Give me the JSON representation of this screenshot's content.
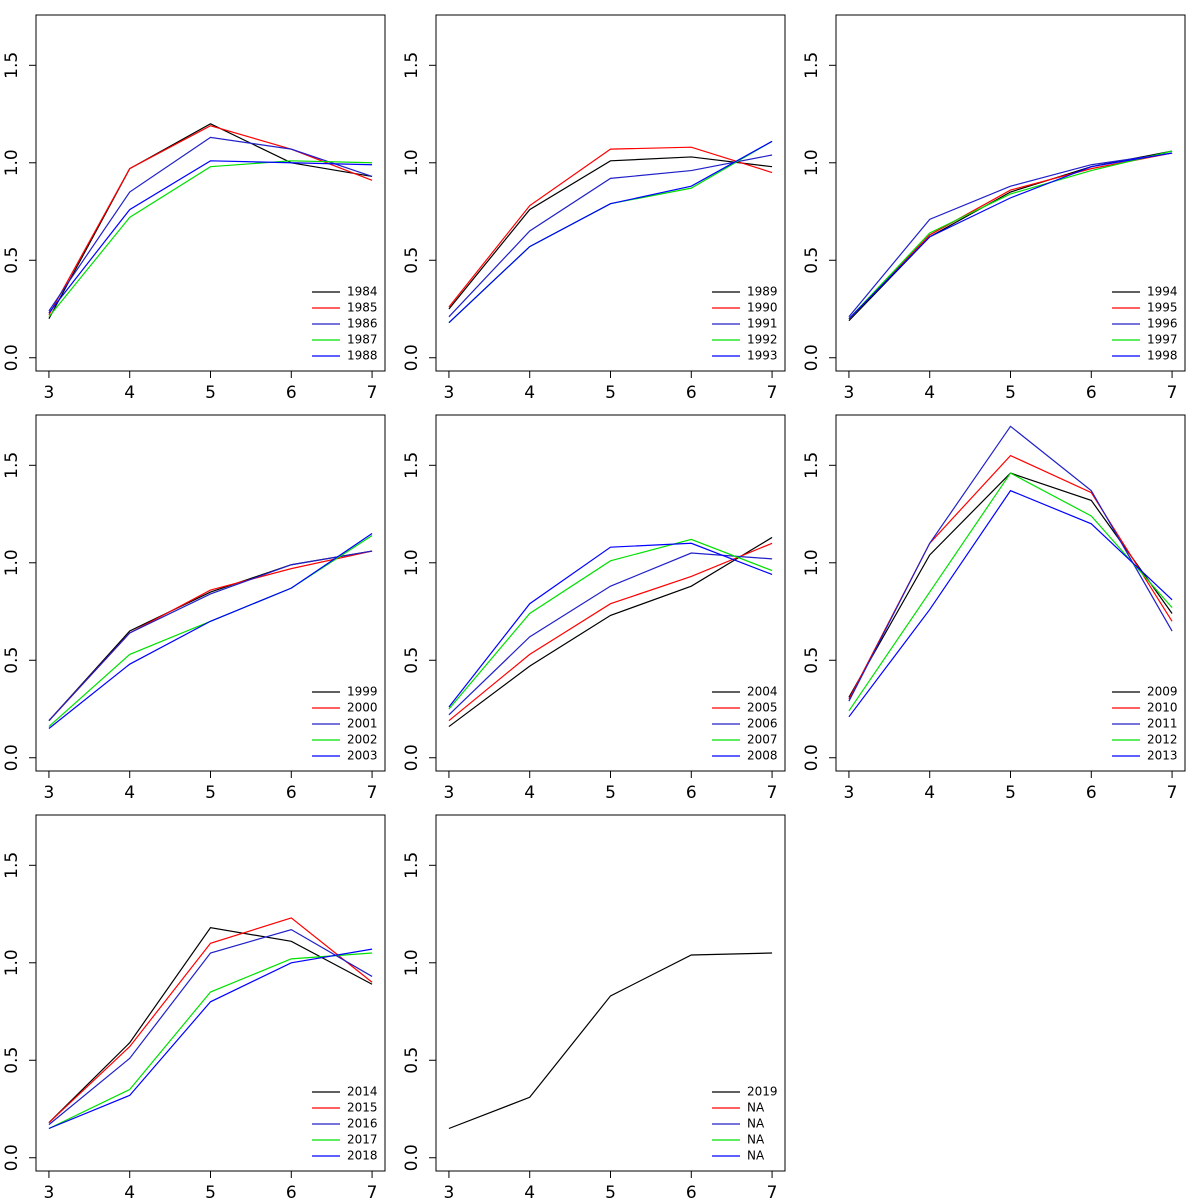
{
  "chart_data": [
    {
      "type": "line",
      "x": [
        3,
        4,
        5,
        6,
        7
      ],
      "xlim": [
        2.84,
        7.16
      ],
      "xticks": [
        3,
        4,
        5,
        6,
        7
      ],
      "ylim": [
        -0.068,
        1.758
      ],
      "yticks": [
        {
          "value": 0,
          "label": "0.0"
        },
        {
          "value": 0.5,
          "label": "0.5"
        },
        {
          "value": 1,
          "label": "1.0"
        },
        {
          "value": 1.5,
          "label": "1.5"
        }
      ],
      "legend": "bottomright",
      "series": [
        {
          "name": "1984",
          "color": "#000000",
          "values": [
            0.2,
            0.97,
            1.2,
            1.0,
            0.93
          ]
        },
        {
          "name": "1985",
          "color": "#ff0000",
          "values": [
            0.22,
            0.97,
            1.19,
            1.07,
            0.91
          ]
        },
        {
          "name": "1986",
          "color": "#2020c8",
          "values": [
            0.24,
            0.85,
            1.13,
            1.07,
            0.93
          ]
        },
        {
          "name": "1987",
          "color": "#00e000",
          "values": [
            0.21,
            0.72,
            0.98,
            1.01,
            1.0
          ]
        },
        {
          "name": "1988",
          "color": "#0000ff",
          "values": [
            0.23,
            0.76,
            1.01,
            1.0,
            0.99
          ]
        }
      ]
    },
    {
      "type": "line",
      "x": [
        3,
        4,
        5,
        6,
        7
      ],
      "xlim": [
        2.84,
        7.16
      ],
      "xticks": [
        3,
        4,
        5,
        6,
        7
      ],
      "ylim": [
        -0.068,
        1.758
      ],
      "yticks": [
        {
          "value": 0,
          "label": "0.0"
        },
        {
          "value": 0.5,
          "label": "0.5"
        },
        {
          "value": 1,
          "label": "1.0"
        },
        {
          "value": 1.5,
          "label": "1.5"
        }
      ],
      "legend": "bottomright",
      "series": [
        {
          "name": "1989",
          "color": "#000000",
          "values": [
            0.25,
            0.76,
            1.01,
            1.03,
            0.98
          ]
        },
        {
          "name": "1990",
          "color": "#ff0000",
          "values": [
            0.26,
            0.78,
            1.07,
            1.08,
            0.95
          ]
        },
        {
          "name": "1991",
          "color": "#2020c8",
          "values": [
            0.21,
            0.65,
            0.92,
            0.96,
            1.04
          ]
        },
        {
          "name": "1992",
          "color": "#00e000",
          "values": [
            0.18,
            0.57,
            0.79,
            0.87,
            1.11
          ]
        },
        {
          "name": "1993",
          "color": "#0000ff",
          "values": [
            0.18,
            0.57,
            0.79,
            0.88,
            1.11
          ]
        }
      ]
    },
    {
      "type": "line",
      "x": [
        3,
        4,
        5,
        6,
        7
      ],
      "xlim": [
        2.84,
        7.16
      ],
      "xticks": [
        3,
        4,
        5,
        6,
        7
      ],
      "ylim": [
        -0.068,
        1.758
      ],
      "yticks": [
        {
          "value": 0,
          "label": "0.0"
        },
        {
          "value": 0.5,
          "label": "0.5"
        },
        {
          "value": 1,
          "label": "1.0"
        },
        {
          "value": 1.5,
          "label": "1.5"
        }
      ],
      "legend": "bottomright",
      "series": [
        {
          "name": "1994",
          "color": "#000000",
          "values": [
            0.19,
            0.62,
            0.85,
            0.98,
            1.06
          ]
        },
        {
          "name": "1995",
          "color": "#ff0000",
          "values": [
            0.2,
            0.63,
            0.86,
            0.97,
            1.05
          ]
        },
        {
          "name": "1996",
          "color": "#2020c8",
          "values": [
            0.21,
            0.71,
            0.88,
            0.99,
            1.05
          ]
        },
        {
          "name": "1997",
          "color": "#00e000",
          "values": [
            0.2,
            0.64,
            0.84,
            0.96,
            1.06
          ]
        },
        {
          "name": "1998",
          "color": "#0000ff",
          "values": [
            0.2,
            0.62,
            0.82,
            0.98,
            1.05
          ]
        }
      ]
    },
    {
      "type": "line",
      "x": [
        3,
        4,
        5,
        6,
        7
      ],
      "xlim": [
        2.84,
        7.16
      ],
      "xticks": [
        3,
        4,
        5,
        6,
        7
      ],
      "ylim": [
        -0.068,
        1.758
      ],
      "yticks": [
        {
          "value": 0,
          "label": "0.0"
        },
        {
          "value": 0.5,
          "label": "0.5"
        },
        {
          "value": 1,
          "label": "1.0"
        },
        {
          "value": 1.5,
          "label": "1.5"
        }
      ],
      "legend": "bottomright",
      "series": [
        {
          "name": "1999",
          "color": "#000000",
          "values": [
            0.19,
            0.65,
            0.85,
            0.99,
            1.06
          ]
        },
        {
          "name": "2000",
          "color": "#ff0000",
          "values": [
            0.19,
            0.64,
            0.86,
            0.97,
            1.06
          ]
        },
        {
          "name": "2001",
          "color": "#2020c8",
          "values": [
            0.19,
            0.64,
            0.84,
            0.99,
            1.06
          ]
        },
        {
          "name": "2002",
          "color": "#00e000",
          "values": [
            0.16,
            0.53,
            0.7,
            0.87,
            1.14
          ]
        },
        {
          "name": "2003",
          "color": "#0000ff",
          "values": [
            0.15,
            0.48,
            0.7,
            0.87,
            1.15
          ]
        }
      ]
    },
    {
      "type": "line",
      "x": [
        3,
        4,
        5,
        6,
        7
      ],
      "xlim": [
        2.84,
        7.16
      ],
      "xticks": [
        3,
        4,
        5,
        6,
        7
      ],
      "ylim": [
        -0.068,
        1.758
      ],
      "yticks": [
        {
          "value": 0,
          "label": "0.0"
        },
        {
          "value": 0.5,
          "label": "0.5"
        },
        {
          "value": 1,
          "label": "1.0"
        },
        {
          "value": 1.5,
          "label": "1.5"
        }
      ],
      "legend": "bottomright",
      "series": [
        {
          "name": "2004",
          "color": "#000000",
          "values": [
            0.16,
            0.47,
            0.73,
            0.88,
            1.13
          ]
        },
        {
          "name": "2005",
          "color": "#ff0000",
          "values": [
            0.19,
            0.53,
            0.79,
            0.93,
            1.1
          ]
        },
        {
          "name": "2006",
          "color": "#2020c8",
          "values": [
            0.22,
            0.62,
            0.88,
            1.05,
            1.02
          ]
        },
        {
          "name": "2007",
          "color": "#00e000",
          "values": [
            0.25,
            0.74,
            1.01,
            1.12,
            0.96
          ]
        },
        {
          "name": "2008",
          "color": "#0000ff",
          "values": [
            0.26,
            0.79,
            1.08,
            1.1,
            0.94
          ]
        }
      ]
    },
    {
      "type": "line",
      "x": [
        3,
        4,
        5,
        6,
        7
      ],
      "xlim": [
        2.84,
        7.16
      ],
      "xticks": [
        3,
        4,
        5,
        6,
        7
      ],
      "ylim": [
        -0.068,
        1.758
      ],
      "yticks": [
        {
          "value": 0,
          "label": "0.0"
        },
        {
          "value": 0.5,
          "label": "0.5"
        },
        {
          "value": 1,
          "label": "1.0"
        },
        {
          "value": 1.5,
          "label": "1.5"
        }
      ],
      "legend": "bottomright",
      "series": [
        {
          "name": "2009",
          "color": "#000000",
          "values": [
            0.31,
            1.04,
            1.46,
            1.32,
            0.74
          ]
        },
        {
          "name": "2010",
          "color": "#ff0000",
          "values": [
            0.3,
            1.1,
            1.55,
            1.36,
            0.7
          ]
        },
        {
          "name": "2011",
          "color": "#2020c8",
          "values": [
            0.29,
            1.1,
            1.7,
            1.37,
            0.65
          ]
        },
        {
          "name": "2012",
          "color": "#00e000",
          "values": [
            0.24,
            0.85,
            1.46,
            1.24,
            0.77
          ]
        },
        {
          "name": "2013",
          "color": "#0000ff",
          "values": [
            0.21,
            0.76,
            1.37,
            1.2,
            0.81
          ]
        }
      ]
    },
    {
      "type": "line",
      "x": [
        3,
        4,
        5,
        6,
        7
      ],
      "xlim": [
        2.84,
        7.16
      ],
      "xticks": [
        3,
        4,
        5,
        6,
        7
      ],
      "ylim": [
        -0.068,
        1.758
      ],
      "yticks": [
        {
          "value": 0,
          "label": "0.0"
        },
        {
          "value": 0.5,
          "label": "0.5"
        },
        {
          "value": 1,
          "label": "1.0"
        },
        {
          "value": 1.5,
          "label": "1.5"
        }
      ],
      "legend": "bottomright",
      "series": [
        {
          "name": "2014",
          "color": "#000000",
          "values": [
            0.18,
            0.59,
            1.18,
            1.11,
            0.89
          ]
        },
        {
          "name": "2015",
          "color": "#ff0000",
          "values": [
            0.18,
            0.57,
            1.1,
            1.23,
            0.9
          ]
        },
        {
          "name": "2016",
          "color": "#2020c8",
          "values": [
            0.17,
            0.51,
            1.05,
            1.17,
            0.93
          ]
        },
        {
          "name": "2017",
          "color": "#00e000",
          "values": [
            0.15,
            0.35,
            0.85,
            1.02,
            1.05
          ]
        },
        {
          "name": "2018",
          "color": "#0000ff",
          "values": [
            0.15,
            0.32,
            0.8,
            1.0,
            1.07
          ]
        }
      ]
    },
    {
      "type": "line",
      "x": [
        3,
        4,
        5,
        6,
        7
      ],
      "xlim": [
        2.84,
        7.16
      ],
      "xticks": [
        3,
        4,
        5,
        6,
        7
      ],
      "ylim": [
        -0.068,
        1.758
      ],
      "yticks": [
        {
          "value": 0,
          "label": "0.0"
        },
        {
          "value": 0.5,
          "label": "0.5"
        },
        {
          "value": 1,
          "label": "1.0"
        },
        {
          "value": 1.5,
          "label": "1.5"
        }
      ],
      "legend": "bottomright",
      "series": [
        {
          "name": "2019",
          "color": "#000000",
          "values": [
            0.15,
            0.31,
            0.83,
            1.04,
            1.05
          ]
        },
        {
          "name": "NA",
          "color": "#ff0000",
          "values": [
            null,
            null,
            null,
            null,
            null
          ]
        },
        {
          "name": "NA",
          "color": "#2020c8",
          "values": [
            null,
            null,
            null,
            null,
            null
          ]
        },
        {
          "name": "NA",
          "color": "#00e000",
          "values": [
            null,
            null,
            null,
            null,
            null
          ]
        },
        {
          "name": "NA",
          "color": "#0000ff",
          "values": [
            null,
            null,
            null,
            null,
            null
          ]
        }
      ]
    }
  ]
}
